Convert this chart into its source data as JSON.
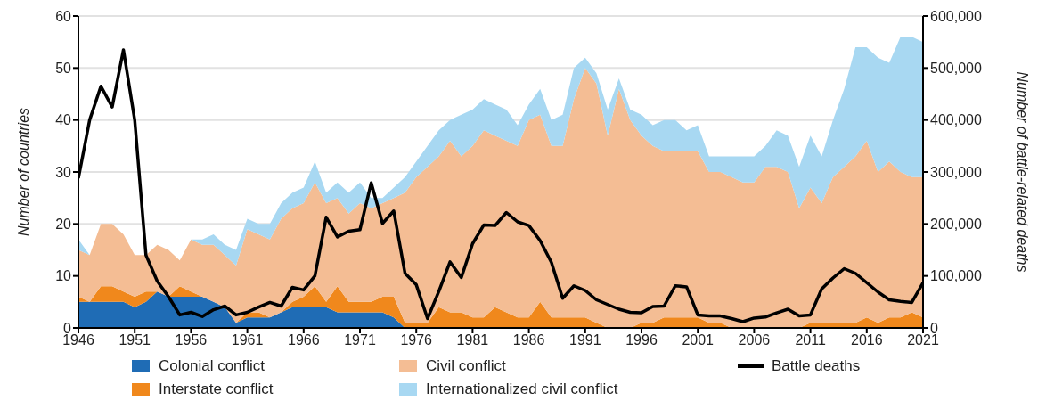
{
  "chart_data": {
    "type": "area",
    "stacked": true,
    "ylabel": "Number of countries",
    "y2label": "Number of battle-related deaths",
    "x": [
      1946,
      1947,
      1948,
      1949,
      1950,
      1951,
      1952,
      1953,
      1954,
      1955,
      1956,
      1957,
      1958,
      1959,
      1960,
      1961,
      1962,
      1963,
      1964,
      1965,
      1966,
      1967,
      1968,
      1969,
      1970,
      1971,
      1972,
      1973,
      1974,
      1975,
      1976,
      1977,
      1978,
      1979,
      1980,
      1981,
      1982,
      1983,
      1984,
      1985,
      1986,
      1987,
      1988,
      1989,
      1990,
      1991,
      1992,
      1993,
      1994,
      1995,
      1996,
      1997,
      1998,
      1999,
      2000,
      2001,
      2002,
      2003,
      2004,
      2005,
      2006,
      2007,
      2008,
      2009,
      2010,
      2011,
      2012,
      2013,
      2014,
      2015,
      2016,
      2017,
      2018,
      2019,
      2020,
      2021
    ],
    "xlim": [
      1946,
      2021
    ],
    "xticks": [
      1946,
      1951,
      1956,
      1961,
      1966,
      1971,
      1976,
      1981,
      1986,
      1991,
      1996,
      2001,
      2006,
      2011,
      2016,
      2021
    ],
    "ylim": [
      0,
      60
    ],
    "yticks": [
      0,
      10,
      20,
      30,
      40,
      50,
      60
    ],
    "y2lim": [
      0,
      600000
    ],
    "y2ticks": [
      0,
      {
        "value": 100000,
        "label": "100,000"
      },
      {
        "value": 200000,
        "label": "200,000"
      },
      {
        "value": 300000,
        "label": "300,000"
      },
      {
        "value": 400000,
        "label": "400,000"
      },
      {
        "value": 500000,
        "label": "500,000"
      },
      {
        "value": 600000,
        "label": "600,000"
      }
    ],
    "grid": "y",
    "legend": "bottom",
    "series": [
      {
        "name": "Colonial conflict",
        "color": "#1f6cb5",
        "values": [
          5,
          5,
          5,
          5,
          5,
          4,
          5,
          7,
          6,
          6,
          6,
          6,
          5,
          4,
          1,
          2,
          2,
          2,
          3,
          4,
          4,
          4,
          4,
          3,
          3,
          3,
          3,
          3,
          2,
          0,
          0,
          0,
          0,
          0,
          0,
          0,
          0,
          0,
          0,
          0,
          0,
          0,
          0,
          0,
          0,
          0,
          0,
          0,
          0,
          0,
          0,
          0,
          0,
          0,
          0,
          0,
          0,
          0,
          0,
          0,
          0,
          0,
          0,
          0,
          0,
          0,
          0,
          0,
          0,
          0,
          0,
          0,
          0,
          0,
          0,
          0
        ]
      },
      {
        "name": "Interstate conflict",
        "color": "#f0881c",
        "values": [
          1,
          0,
          3,
          3,
          2,
          2,
          2,
          0,
          0,
          2,
          1,
          0,
          0,
          0,
          0,
          1,
          1,
          0,
          0,
          1,
          2,
          4,
          1,
          5,
          2,
          2,
          2,
          3,
          4,
          1,
          1,
          1,
          4,
          3,
          3,
          2,
          2,
          4,
          3,
          2,
          2,
          5,
          2,
          2,
          2,
          2,
          1,
          0,
          0,
          0,
          1,
          1,
          2,
          2,
          2,
          2,
          1,
          1,
          0,
          0,
          0,
          0,
          0,
          0,
          0,
          1,
          1,
          1,
          1,
          1,
          2,
          1,
          2,
          2,
          3,
          2
        ]
      },
      {
        "name": "Civil conflict",
        "color": "#f4bd94",
        "values": [
          9,
          9,
          12,
          12,
          11,
          8,
          7,
          9,
          9,
          5,
          10,
          10,
          11,
          10,
          11,
          16,
          15,
          15,
          18,
          18,
          18,
          20,
          19,
          17,
          17,
          19,
          18,
          18,
          19,
          25,
          28,
          30,
          29,
          33,
          30,
          33,
          36,
          33,
          33,
          33,
          38,
          36,
          33,
          33,
          42,
          48,
          46,
          37,
          46,
          40,
          36,
          34,
          32,
          32,
          32,
          32,
          29,
          29,
          29,
          28,
          28,
          31,
          31,
          30,
          23,
          26,
          23,
          28,
          30,
          32,
          34,
          29,
          30,
          28,
          26,
          27
        ]
      },
      {
        "name": "Internationalized civil conflict",
        "color": "#a8d8f2",
        "values": [
          2,
          0,
          0,
          0,
          0,
          0,
          0,
          0,
          0,
          0,
          0,
          1,
          2,
          2,
          3,
          2,
          2,
          3,
          3,
          3,
          3,
          4,
          2,
          3,
          4,
          4,
          2,
          1,
          2,
          3,
          3,
          4,
          5,
          4,
          8,
          7,
          6,
          6,
          6,
          4,
          3,
          5,
          5,
          6,
          6,
          2,
          2,
          5,
          2,
          2,
          4,
          4,
          6,
          6,
          4,
          5,
          3,
          3,
          4,
          5,
          5,
          4,
          7,
          7,
          8,
          10,
          9,
          11,
          15,
          21,
          18,
          22,
          19,
          26,
          27,
          26
        ]
      },
      {
        "name": "Battle deaths",
        "type": "line",
        "axis": "y2",
        "color": "#000000",
        "values": [
          288000,
          400000,
          465000,
          425000,
          535000,
          400000,
          140000,
          90000,
          60000,
          25000,
          30000,
          22000,
          35000,
          42000,
          25000,
          30000,
          40000,
          49000,
          42000,
          78000,
          73000,
          100000,
          213000,
          175000,
          186000,
          189000,
          279000,
          201000,
          225000,
          105000,
          83000,
          18000,
          70000,
          127000,
          97000,
          162000,
          198000,
          197000,
          222000,
          204000,
          197000,
          168000,
          126000,
          57000,
          81000,
          72000,
          54000,
          45000,
          36000,
          30000,
          29000,
          41000,
          42000,
          81000,
          79000,
          25000,
          23000,
          23000,
          18000,
          12000,
          19000,
          21000,
          29000,
          36000,
          23000,
          25000,
          75000,
          96000,
          114000,
          105000,
          87000,
          69000,
          54000,
          51000,
          49000,
          87000
        ]
      }
    ]
  }
}
